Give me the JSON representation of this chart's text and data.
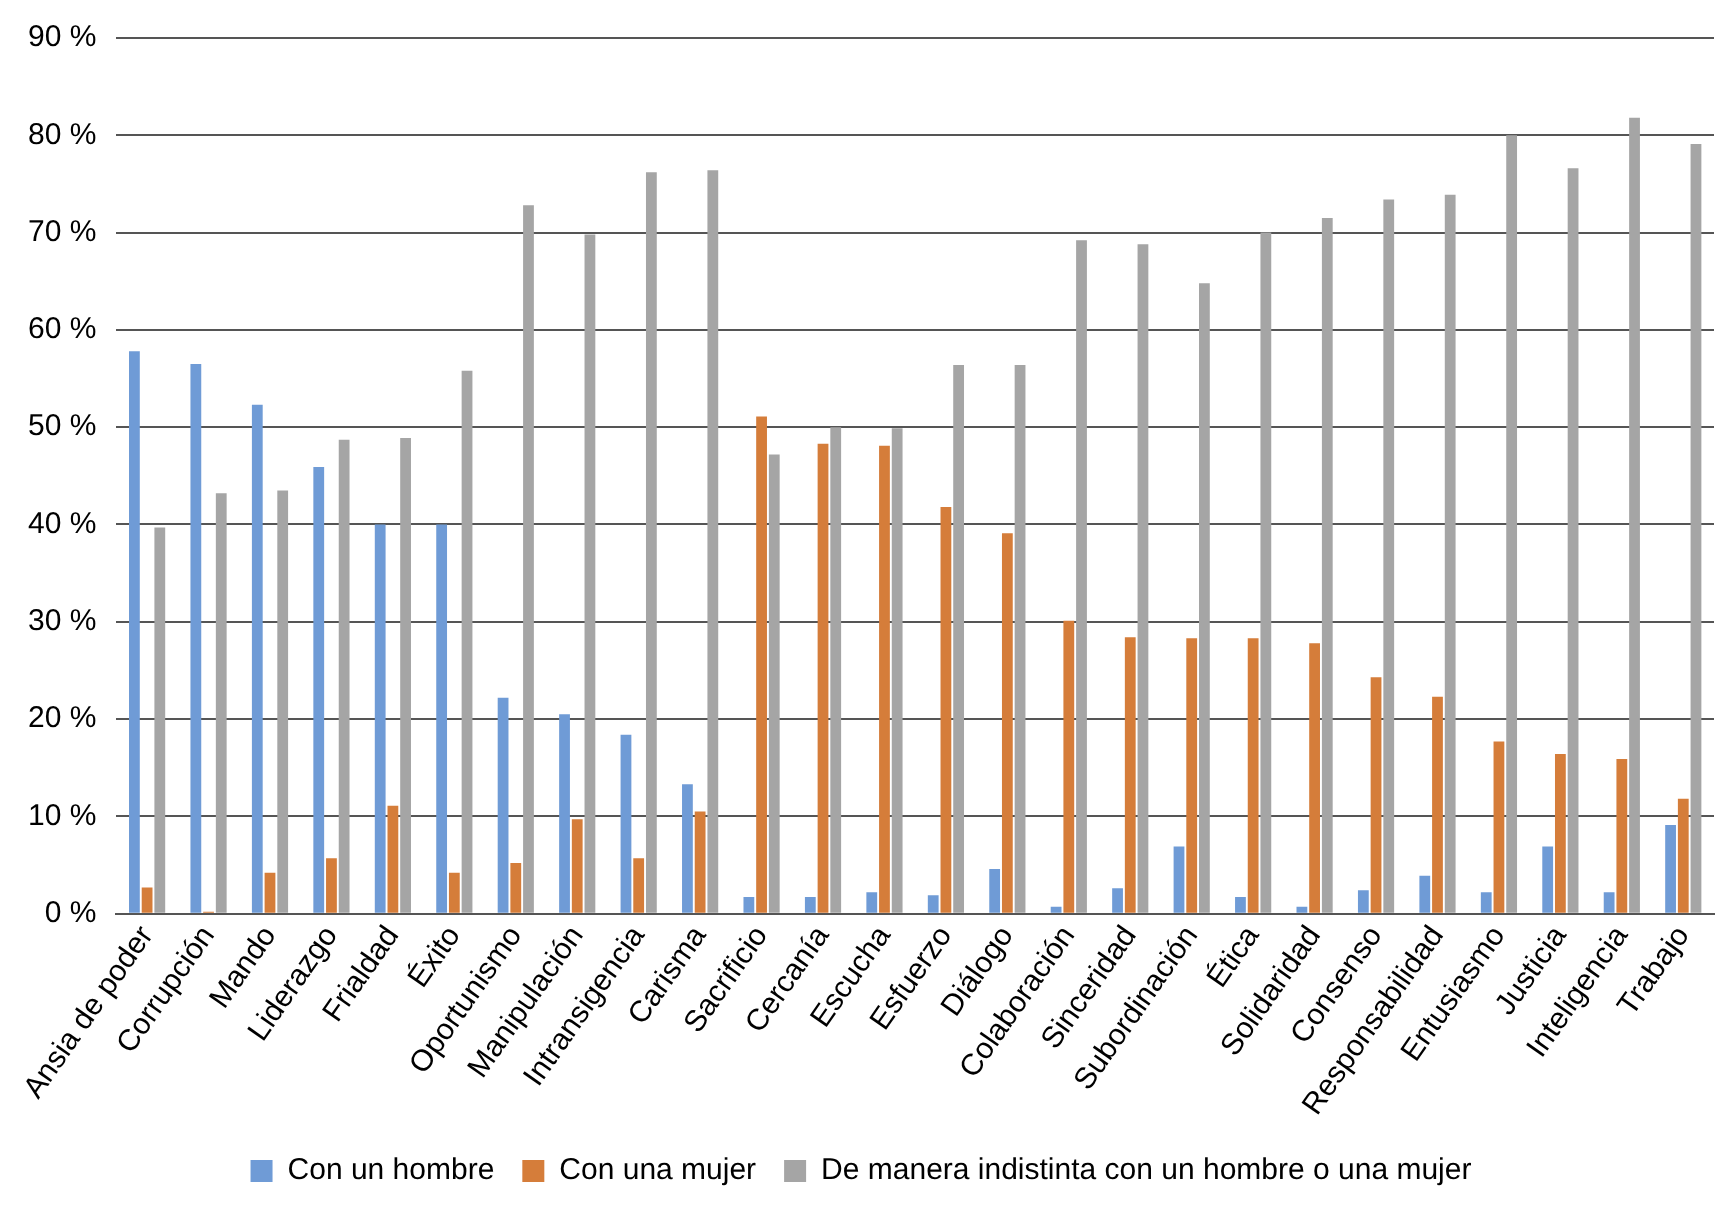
{
  "chart_data": {
    "type": "bar",
    "categories": [
      "Ansia de poder",
      "Corrupción",
      "Mando",
      "Liderazgo",
      "Frialdad",
      "Éxito",
      "Oportunismo",
      "Manipulación",
      "Intransigencia",
      "Carisma",
      "Sacrificio",
      "Cercanía",
      "Escucha",
      "Esfuerzo",
      "Diálogo",
      "Colaboración",
      "Sinceridad",
      "Subordinación",
      "Ética",
      "Solidaridad",
      "Consenso",
      "Responsabilidad",
      "Entusiasmo",
      "Justicia",
      "Inteligencia",
      "Trabajo"
    ],
    "series": [
      {
        "name": "Con un hombre",
        "color": "#6f9bd6",
        "values": [
          57.8,
          56.5,
          52.3,
          45.9,
          40,
          40,
          22.2,
          20.5,
          18.4,
          13.3,
          1.7,
          1.7,
          2.2,
          1.9,
          4.6,
          0.7,
          2.6,
          6.9,
          1.7,
          0.7,
          2.4,
          3.9,
          2.2,
          6.9,
          2.2,
          9.1
        ]
      },
      {
        "name": "Con una mujer",
        "color": "#d57d3a",
        "values": [
          2.7,
          0.2,
          4.2,
          5.7,
          11.1,
          4.2,
          5.2,
          9.7,
          5.7,
          10.5,
          51.1,
          48.3,
          48.1,
          41.8,
          39.1,
          30.1,
          28.4,
          28.3,
          28.3,
          27.8,
          24.3,
          22.3,
          17.7,
          16.4,
          15.9,
          11.8
        ]
      },
      {
        "name": "De manera indistinta con un hombre o una mujer",
        "color": "#a5a5a5",
        "values": [
          39.7,
          43.2,
          43.5,
          48.7,
          48.9,
          55.8,
          72.8,
          69.8,
          76.2,
          76.4,
          47.2,
          50.0,
          49.9,
          56.4,
          56.4,
          69.2,
          68.8,
          64.8,
          70.0,
          71.5,
          73.4,
          73.9,
          80.0,
          76.6,
          81.8,
          79.1
        ]
      }
    ],
    "ylim": [
      0,
      90
    ],
    "yticks": [
      {
        "value": 0,
        "label": "0 %"
      },
      {
        "value": 10,
        "label": "10 %"
      },
      {
        "value": 20,
        "label": "20 %"
      },
      {
        "value": 30,
        "label": "30 %"
      },
      {
        "value": 40,
        "label": "40 %"
      },
      {
        "value": 50,
        "label": "50 %"
      },
      {
        "value": 60,
        "label": "60 %"
      },
      {
        "value": 70,
        "label": "70 %"
      },
      {
        "value": 80,
        "label": "80 %"
      },
      {
        "value": 90,
        "label": "90 %"
      }
    ],
    "grid": "y",
    "legend": "bottom"
  }
}
